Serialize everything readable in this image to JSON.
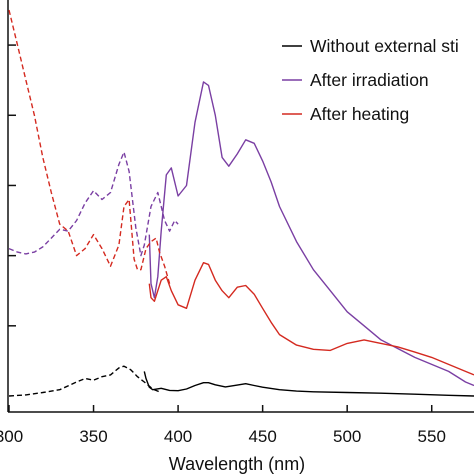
{
  "chart_data": {
    "type": "line",
    "xlabel": "Wavelength (nm)",
    "ylabel": "",
    "xlim": [
      300,
      575
    ],
    "ylim": [
      0,
      1.1
    ],
    "x_ticks": [
      300,
      350,
      400,
      450,
      500,
      550
    ],
    "x_tick_labels": [
      "300",
      "350",
      "400",
      "450",
      "500",
      "550"
    ],
    "y_ticks": [
      0.2,
      0.4,
      0.6,
      0.8,
      1.0
    ],
    "grid": false,
    "legend_position": "top-right",
    "series": [
      {
        "name": "Without external sti",
        "color": "#000000",
        "segments": [
          {
            "style": "dashed",
            "x": [
              300,
              310,
              320,
              330,
              340,
              345,
              350,
              355,
              360,
              365,
              368,
              372,
              376,
              380,
              385,
              390
            ],
            "y": [
              0.0,
              0.003,
              0.01,
              0.018,
              0.04,
              0.05,
              0.045,
              0.055,
              0.06,
              0.08,
              0.085,
              0.075,
              0.055,
              0.04,
              0.02,
              0.01
            ]
          },
          {
            "style": "solid",
            "x": [
              380,
              381,
              383,
              385,
              390,
              395,
              400,
              405,
              410,
              415,
              418,
              422,
              428,
              435,
              440,
              445,
              450,
              460,
              470,
              480,
              500,
              520,
              540,
              560,
              575
            ],
            "y": [
              0.07,
              0.05,
              0.025,
              0.018,
              0.022,
              0.016,
              0.015,
              0.02,
              0.03,
              0.038,
              0.038,
              0.032,
              0.026,
              0.031,
              0.035,
              0.03,
              0.025,
              0.018,
              0.014,
              0.012,
              0.01,
              0.008,
              0.005,
              0.002,
              0.0
            ]
          }
        ]
      },
      {
        "name": "After irradiation",
        "color": "#7a3fa3",
        "segments": [
          {
            "style": "dashed",
            "x": [
              300,
              305,
              310,
              315,
              320,
              325,
              330,
              335,
              340,
              345,
              350,
              355,
              360,
              365,
              368,
              371,
              375,
              378,
              380,
              384,
              388,
              392,
              395,
              398,
              400
            ],
            "y": [
              0.42,
              0.41,
              0.405,
              0.41,
              0.425,
              0.45,
              0.475,
              0.47,
              0.5,
              0.55,
              0.585,
              0.56,
              0.58,
              0.66,
              0.695,
              0.64,
              0.48,
              0.4,
              0.43,
              0.54,
              0.58,
              0.5,
              0.47,
              0.5,
              0.49
            ]
          },
          {
            "style": "solid",
            "x": [
              383,
              384,
              386,
              388,
              390,
              393,
              396,
              400,
              405,
              410,
              415,
              418,
              422,
              426,
              430,
              435,
              440,
              445,
              450,
              455,
              460,
              470,
              480,
              490,
              500,
              510,
              520,
              530,
              540,
              550,
              560,
              570,
              575
            ],
            "y": [
              0.46,
              0.32,
              0.28,
              0.34,
              0.47,
              0.63,
              0.65,
              0.57,
              0.6,
              0.78,
              0.895,
              0.885,
              0.8,
              0.68,
              0.655,
              0.69,
              0.73,
              0.72,
              0.67,
              0.61,
              0.54,
              0.44,
              0.36,
              0.3,
              0.24,
              0.2,
              0.16,
              0.135,
              0.11,
              0.09,
              0.07,
              0.04,
              0.03
            ]
          }
        ]
      },
      {
        "name": "After heating",
        "color": "#d42a20",
        "segments": [
          {
            "style": "dashed",
            "x": [
              300,
              305,
              310,
              315,
              320,
              325,
              330,
              335,
              340,
              345,
              350,
              355,
              360,
              365,
              368,
              371,
              374,
              376,
              378,
              381,
              384,
              387,
              389,
              392,
              395
            ],
            "y": [
              1.1,
              1.0,
              0.9,
              0.8,
              0.68,
              0.58,
              0.49,
              0.47,
              0.4,
              0.42,
              0.46,
              0.42,
              0.37,
              0.43,
              0.54,
              0.56,
              0.39,
              0.36,
              0.36,
              0.42,
              0.44,
              0.45,
              0.41,
              0.37,
              0.32
            ]
          },
          {
            "style": "solid",
            "x": [
              383,
              384,
              386,
              388,
              390,
              393,
              396,
              400,
              405,
              410,
              415,
              418,
              422,
              426,
              430,
              435,
              440,
              445,
              450,
              455,
              460,
              470,
              480,
              490,
              500,
              510,
              520,
              530,
              540,
              550,
              560,
              570,
              575
            ],
            "y": [
              0.32,
              0.28,
              0.27,
              0.3,
              0.33,
              0.34,
              0.3,
              0.26,
              0.25,
              0.33,
              0.38,
              0.375,
              0.33,
              0.3,
              0.28,
              0.31,
              0.315,
              0.29,
              0.25,
              0.21,
              0.175,
              0.145,
              0.133,
              0.13,
              0.15,
              0.16,
              0.15,
              0.14,
              0.125,
              0.11,
              0.09,
              0.07,
              0.06
            ]
          }
        ]
      }
    ]
  }
}
